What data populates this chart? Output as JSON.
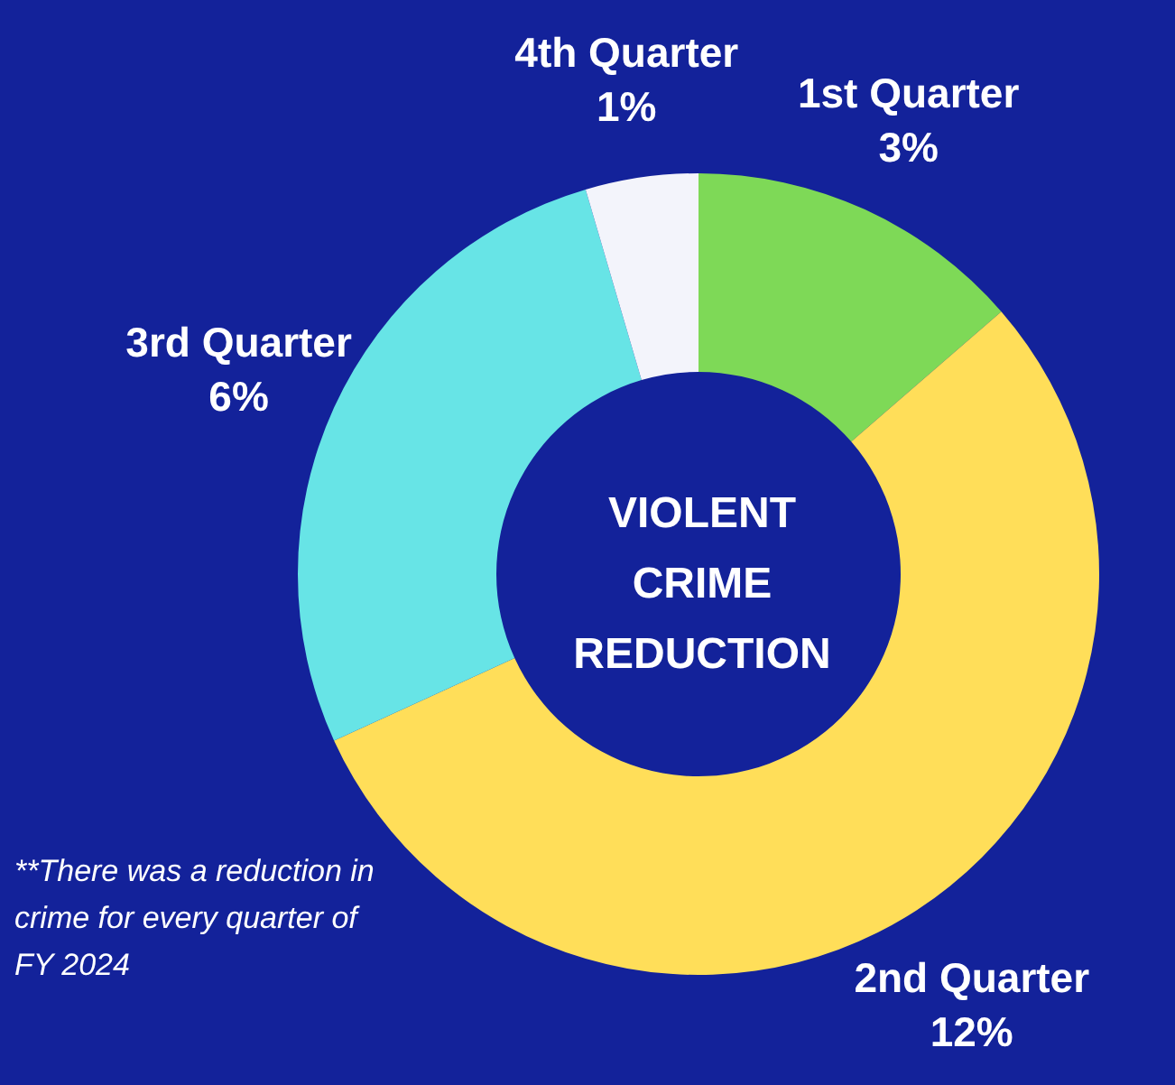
{
  "chart_data": {
    "type": "donut",
    "title": "VIOLENT CRIME REDUCTION",
    "categories": [
      "1st Quarter",
      "2nd Quarter",
      "3rd Quarter",
      "4th Quarter"
    ],
    "values": [
      3,
      12,
      6,
      1
    ],
    "value_labels": [
      "3%",
      "12%",
      "6%",
      "1%"
    ],
    "colors": [
      "#7ed957",
      "#ffde59",
      "#67e4e6",
      "#f3f4fb"
    ],
    "annotations": [
      "**There was a reduction in crime for every quarter of FY 2024"
    ]
  }
}
